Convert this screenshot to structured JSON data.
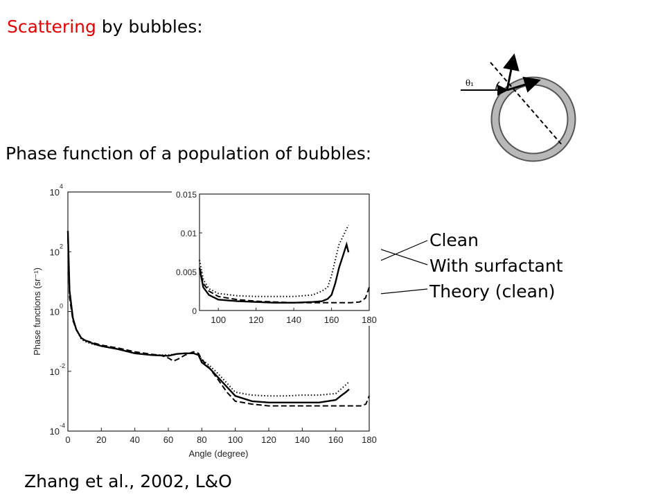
{
  "slide": {
    "title_highlight": "Scattering",
    "title_rest": " by bubbles:",
    "subtitle": "Phase function of a population of bubbles:",
    "citation": "Zhang et al., 2002, L&O",
    "legend": [
      "Clean",
      "With surfactant",
      "Theory (clean)"
    ],
    "diagram": {
      "angle_label": "θ₁"
    }
  },
  "colors": {
    "highlight": "#e00000",
    "text": "#000000",
    "bubble_ring": "#b8b8b8"
  },
  "chart_data": [
    {
      "type": "line",
      "scale": "log-y",
      "ylabel": "Phase functions (sr⁻¹)",
      "xlabel": "Angle (degree)",
      "xlim": [
        0,
        180
      ],
      "ylim": [
        0.0001,
        10000
      ],
      "xticks": [
        "0",
        "20",
        "40",
        "60",
        "80",
        "100",
        "120",
        "140",
        "160",
        "180"
      ],
      "yticks": [
        {
          "base": "10",
          "exp": "4",
          "v": 10000
        },
        {
          "base": "10",
          "exp": "2",
          "v": 100
        },
        {
          "base": "10",
          "exp": "0",
          "v": 1
        },
        {
          "base": "10",
          "exp": "-2",
          "v": 0.01
        },
        {
          "base": "10",
          "exp": "-4",
          "v": 0.0001
        }
      ],
      "series": [
        {
          "style": "solid",
          "x": [
            0,
            1,
            3,
            5,
            8,
            10,
            15,
            20,
            30,
            40,
            50,
            60,
            65,
            70,
            75,
            78,
            80,
            85,
            90,
            95,
            100,
            110,
            120,
            130,
            140,
            150,
            155,
            160,
            163,
            166,
            168
          ],
          "y": [
            500,
            5,
            0.6,
            0.25,
            0.13,
            0.11,
            0.085,
            0.07,
            0.055,
            0.04,
            0.035,
            0.033,
            0.038,
            0.04,
            0.04,
            0.035,
            0.02,
            0.012,
            0.006,
            0.003,
            0.0015,
            0.001,
            0.0009,
            0.0009,
            0.0009,
            0.0009,
            0.001,
            0.0011,
            0.0015,
            0.002,
            0.0025
          ]
        },
        {
          "style": "dotted",
          "x": [
            0,
            1,
            3,
            5,
            8,
            10,
            15,
            20,
            30,
            40,
            50,
            60,
            65,
            70,
            75,
            78,
            80,
            85,
            90,
            95,
            100,
            110,
            120,
            130,
            140,
            150,
            155,
            160,
            163,
            166,
            168
          ],
          "y": [
            400,
            4,
            0.6,
            0.25,
            0.12,
            0.1,
            0.08,
            0.07,
            0.055,
            0.04,
            0.035,
            0.035,
            0.038,
            0.04,
            0.04,
            0.035,
            0.025,
            0.015,
            0.008,
            0.004,
            0.002,
            0.0016,
            0.0015,
            0.0015,
            0.0016,
            0.0016,
            0.0017,
            0.0018,
            0.0025,
            0.0035,
            0.0045
          ]
        },
        {
          "style": "dashed",
          "x": [
            0,
            1,
            3,
            5,
            8,
            10,
            15,
            20,
            30,
            40,
            50,
            55,
            60,
            63,
            66,
            70,
            75,
            78,
            80,
            85,
            90,
            95,
            100,
            110,
            120,
            130,
            140,
            150,
            160,
            170,
            175,
            178,
            180
          ],
          "y": [
            300,
            3,
            0.5,
            0.25,
            0.13,
            0.11,
            0.09,
            0.075,
            0.06,
            0.045,
            0.037,
            0.035,
            0.028,
            0.022,
            0.026,
            0.035,
            0.045,
            0.04,
            0.025,
            0.012,
            0.005,
            0.002,
            0.001,
            0.0008,
            0.0007,
            0.0007,
            0.0007,
            0.0007,
            0.0007,
            0.0007,
            0.0007,
            0.0008,
            0.0015
          ]
        }
      ]
    },
    {
      "type": "line",
      "inset": true,
      "xlim": [
        90,
        180
      ],
      "ylim": [
        0,
        0.015
      ],
      "xticks": [
        "100",
        "120",
        "140",
        "160",
        "180"
      ],
      "yticks": [
        "0",
        "0.005",
        "0.01",
        "0.015"
      ],
      "series": [
        {
          "style": "solid",
          "x": [
            90,
            92,
            95,
            100,
            110,
            120,
            130,
            140,
            150,
            155,
            158,
            160,
            162,
            164,
            166,
            168,
            169
          ],
          "y": [
            0.0055,
            0.003,
            0.002,
            0.0014,
            0.0012,
            0.0011,
            0.001,
            0.001,
            0.0011,
            0.0012,
            0.0015,
            0.002,
            0.0035,
            0.0055,
            0.007,
            0.0085,
            0.0075
          ]
        },
        {
          "style": "dotted",
          "x": [
            90,
            92,
            95,
            100,
            110,
            120,
            130,
            140,
            150,
            155,
            158,
            160,
            162,
            164,
            166,
            168,
            169
          ],
          "y": [
            0.0065,
            0.004,
            0.0028,
            0.0022,
            0.0019,
            0.0018,
            0.0018,
            0.0018,
            0.002,
            0.0025,
            0.003,
            0.0045,
            0.0065,
            0.0085,
            0.0095,
            0.0105,
            0.011
          ]
        },
        {
          "style": "dashed",
          "x": [
            90,
            92,
            95,
            100,
            110,
            120,
            130,
            140,
            150,
            160,
            170,
            175,
            178,
            180
          ],
          "y": [
            0.0055,
            0.0035,
            0.0025,
            0.0018,
            0.0014,
            0.0012,
            0.0011,
            0.001,
            0.001,
            0.001,
            0.001,
            0.0011,
            0.0016,
            0.003
          ]
        }
      ]
    }
  ]
}
